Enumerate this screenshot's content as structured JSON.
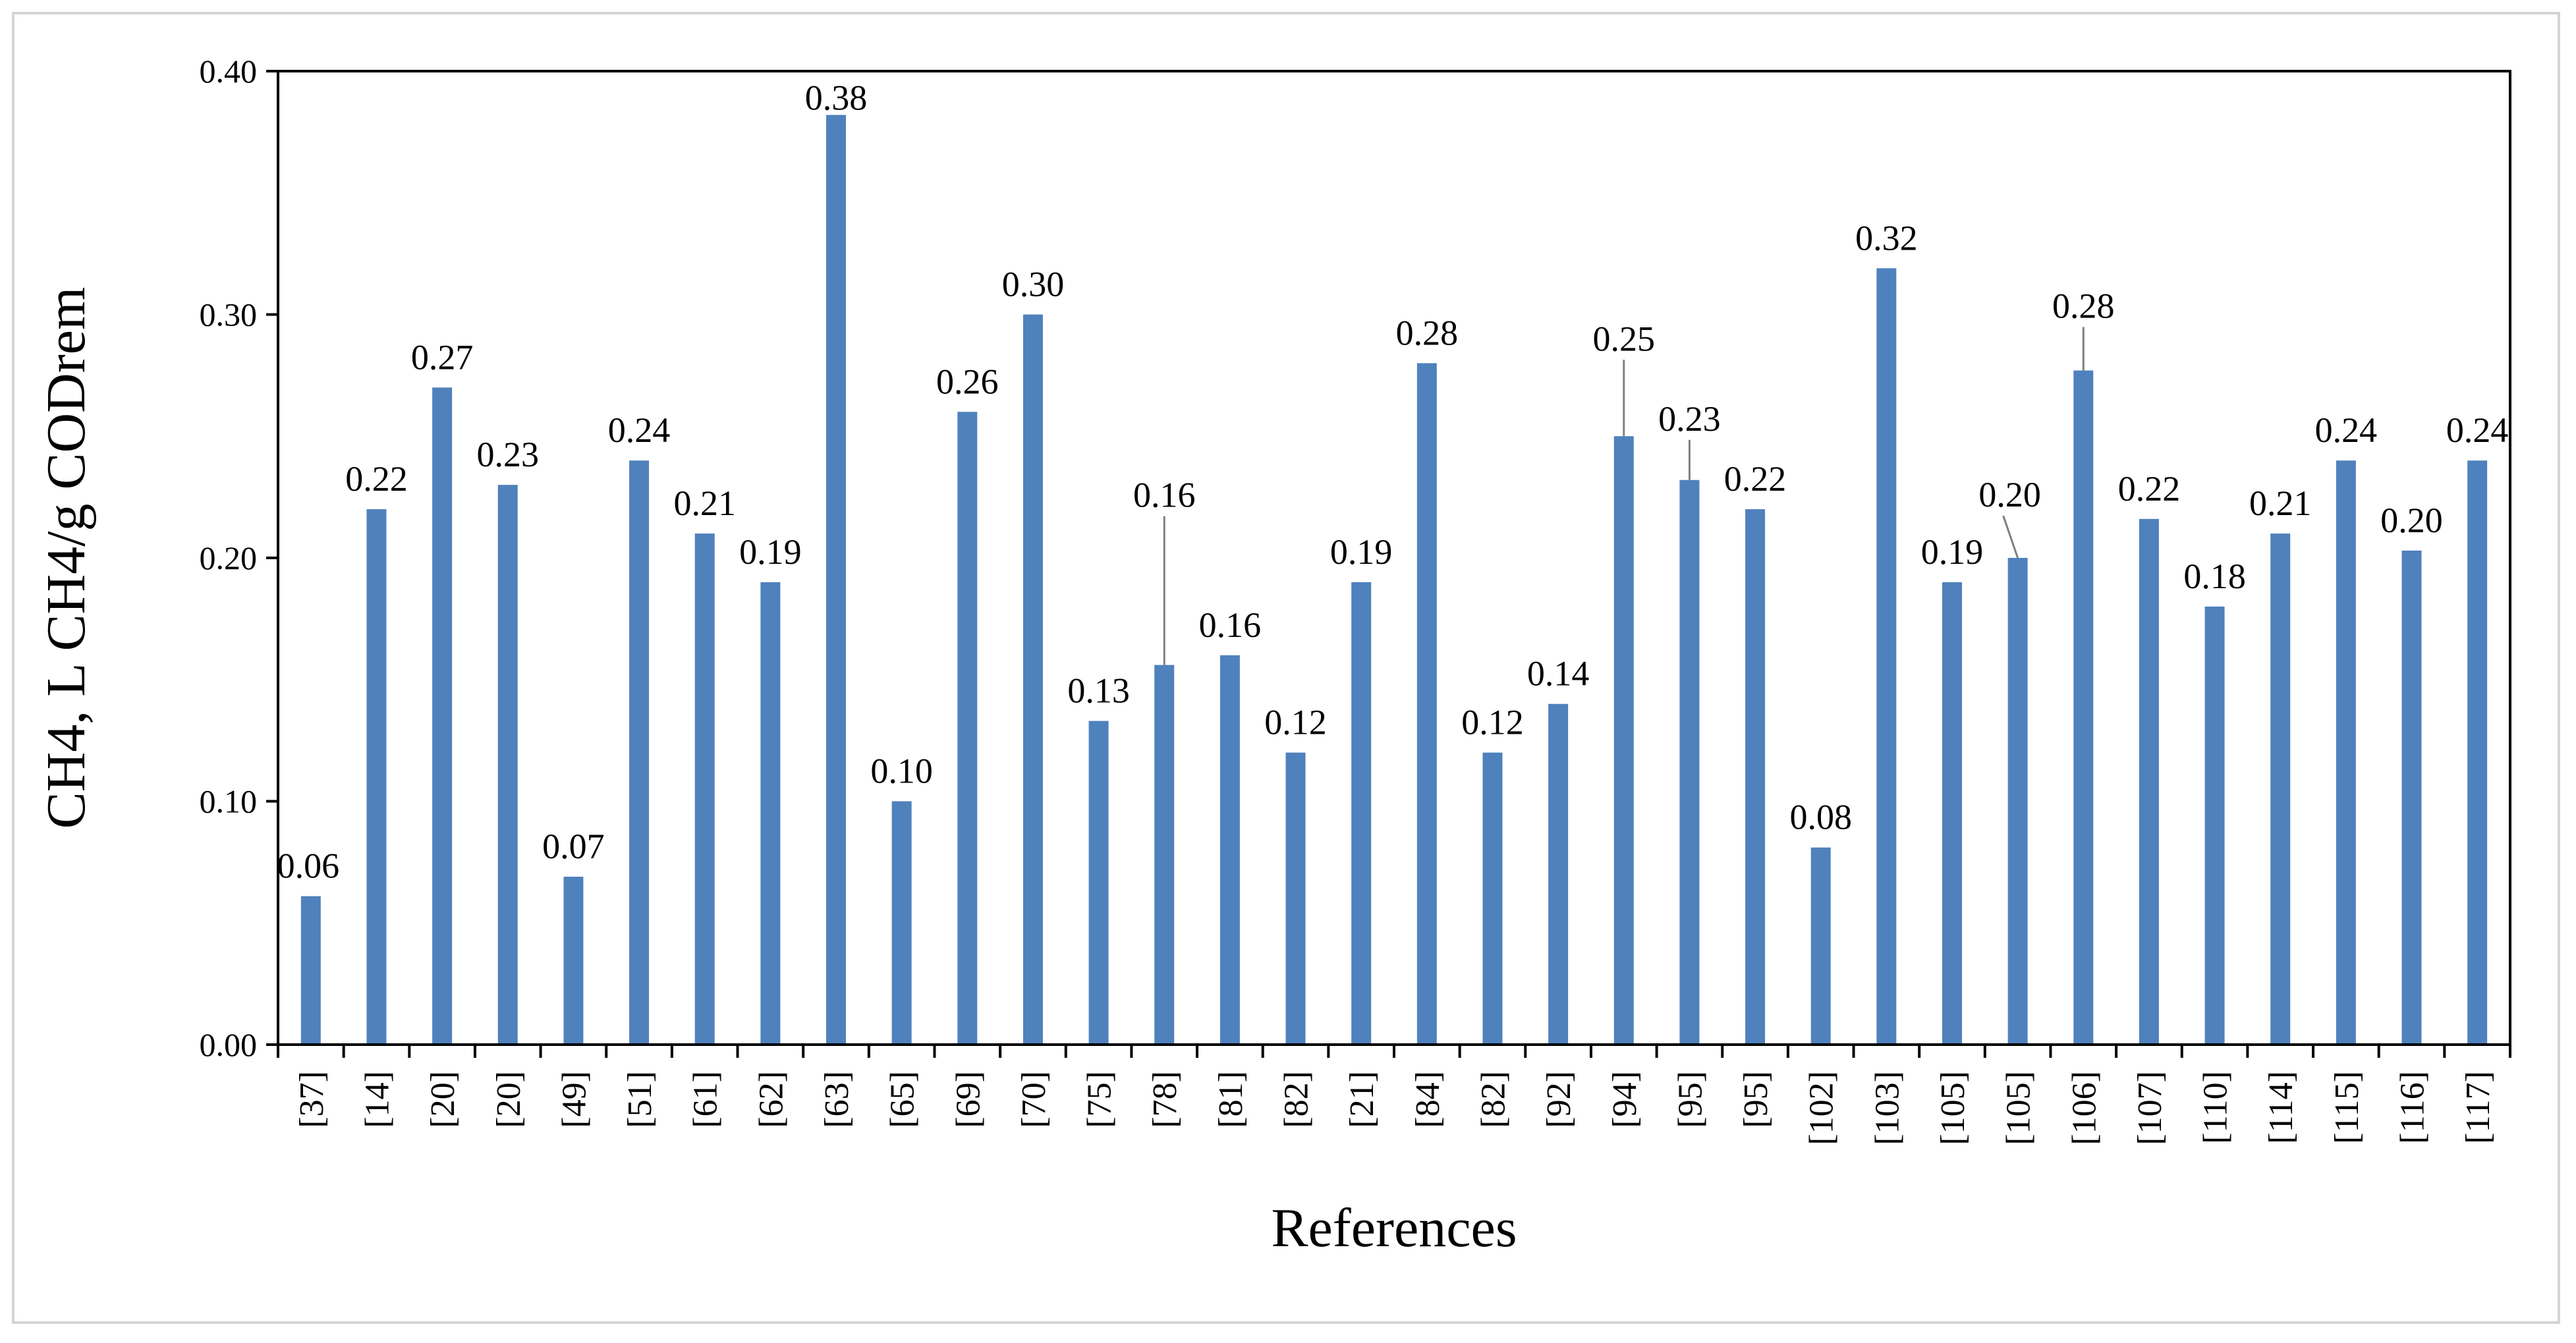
{
  "chart_data": {
    "type": "bar",
    "xlabel": "References",
    "ylabel": "CH4, L CH4/g CODrem",
    "ylim": [
      0,
      0.4
    ],
    "yticks": [
      "0.00",
      "0.10",
      "0.20",
      "0.30",
      "0.40"
    ],
    "grid": false,
    "legend": "none",
    "bar_color": "#4f81bd",
    "categories": [
      "[37]",
      "[14]",
      "[20]",
      "[20]",
      "[49]",
      "[51]",
      "[61]",
      "[62]",
      "[63]",
      "[65]",
      "[69]",
      "[70]",
      "[75]",
      "[78]",
      "[81]",
      "[82]",
      "[21]",
      "[84]",
      "[82]",
      "[92]",
      "[94]",
      "[95]",
      "[95]",
      "[102]",
      "[103]",
      "[105]",
      "[105]",
      "[106]",
      "[107]",
      "[110]",
      "[114]",
      "[115]",
      "[116]",
      "[117]"
    ],
    "values": [
      0.061,
      0.22,
      0.27,
      0.23,
      0.069,
      0.24,
      0.21,
      0.19,
      0.382,
      0.1,
      0.26,
      0.3,
      0.133,
      0.156,
      0.16,
      0.12,
      0.19,
      0.28,
      0.12,
      0.14,
      0.25,
      0.232,
      0.22,
      0.081,
      0.319,
      0.19,
      0.2,
      0.277,
      0.216,
      0.18,
      0.21,
      0.24,
      0.203,
      0.24
    ],
    "data_labels": [
      "0.06",
      "0.22",
      "0.27",
      "0.23",
      "0.07",
      "0.24",
      "0.21",
      "0.19",
      "0.38",
      "0.10",
      "0.26",
      "0.30",
      "0.13",
      "0.16",
      "0.16",
      "0.12",
      "0.19",
      "0.28",
      "0.12",
      "0.14",
      "0.25",
      "0.23",
      "0.22",
      "0.08",
      "0.32",
      "0.19",
      "0.20",
      "0.28",
      "0.22",
      "0.18",
      "0.21",
      "0.24",
      "0.20",
      "0.24"
    ]
  }
}
